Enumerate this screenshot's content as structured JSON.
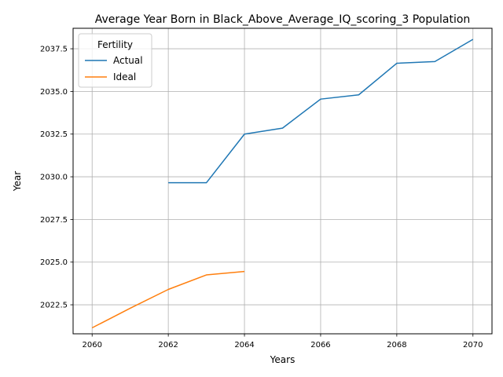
{
  "chart_data": {
    "type": "line",
    "title": "Average Year Born in Black_Above_Average_IQ_scoring_3 Population",
    "xlabel": "Years",
    "ylabel": "Year",
    "xlim": [
      2059.5,
      2070.5
    ],
    "ylim": [
      2020.8,
      2038.7
    ],
    "xticks": [
      2060,
      2062,
      2064,
      2066,
      2068,
      2070
    ],
    "yticks": [
      2022.5,
      2025.0,
      2027.5,
      2030.0,
      2032.5,
      2035.0,
      2037.5
    ],
    "xtick_labels": [
      "2060",
      "2062",
      "2064",
      "2066",
      "2068",
      "2070"
    ],
    "ytick_labels": [
      "2022.5",
      "2025.0",
      "2027.5",
      "2030.0",
      "2032.5",
      "2035.0",
      "2037.5"
    ],
    "grid": true,
    "legend": {
      "title": "Fertility",
      "position": "top-left"
    },
    "series": [
      {
        "name": "Actual",
        "color": "#1f77b4",
        "x": [
          2062,
          2063,
          2064,
          2065,
          2066,
          2067,
          2068,
          2069,
          2070
        ],
        "y": [
          2029.65,
          2029.65,
          2032.5,
          2032.85,
          2034.55,
          2034.8,
          2036.65,
          2036.75,
          2038.05
        ]
      },
      {
        "name": "Ideal",
        "color": "#ff7f0e",
        "x": [
          2060,
          2061,
          2062,
          2063,
          2064
        ],
        "y": [
          2021.15,
          2022.3,
          2023.4,
          2024.25,
          2024.45
        ]
      }
    ]
  }
}
